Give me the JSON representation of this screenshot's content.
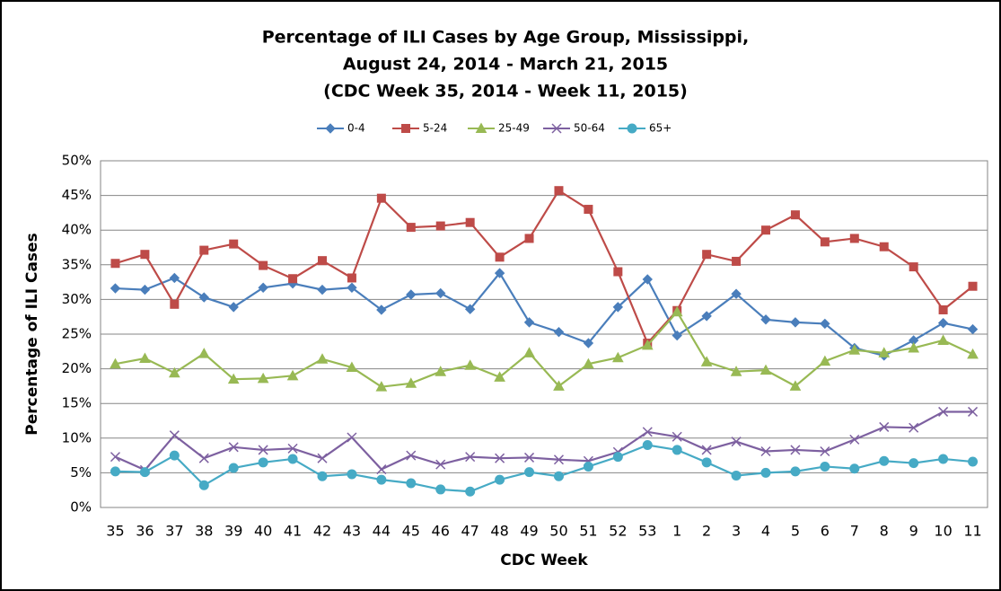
{
  "chart_data": {
    "type": "line",
    "title": [
      "Percentage of ILI Cases by Age Group, Mississippi,",
      "August 24, 2014 - March 21, 2015",
      "(CDC Week 35, 2014 - Week 11, 2015)"
    ],
    "x_label": "CDC Week",
    "y_label": "Percentage of ILI Cases",
    "categories": [
      "35",
      "36",
      "37",
      "38",
      "39",
      "40",
      "41",
      "42",
      "43",
      "44",
      "45",
      "46",
      "47",
      "48",
      "49",
      "50",
      "51",
      "52",
      "53",
      "1",
      "2",
      "3",
      "4",
      "5",
      "6",
      "7",
      "8",
      "9",
      "10",
      "11"
    ],
    "series": [
      {
        "name": "0-4",
        "color": "#4a7ebb",
        "marker": "diamond",
        "values": [
          31.6,
          31.4,
          33.1,
          30.3,
          28.9,
          31.7,
          32.3,
          31.4,
          31.7,
          28.5,
          30.7,
          30.9,
          28.6,
          33.8,
          26.7,
          25.3,
          23.7,
          28.9,
          32.9,
          24.8,
          27.6,
          30.8,
          27.1,
          26.7,
          26.5,
          23.0,
          21.9,
          24.1,
          26.6,
          25.7
        ]
      },
      {
        "name": "5-24",
        "color": "#be4b48",
        "marker": "square",
        "values": [
          35.2,
          36.5,
          29.3,
          37.1,
          38.0,
          34.9,
          33.0,
          35.6,
          33.1,
          44.6,
          40.4,
          40.6,
          41.1,
          36.1,
          38.8,
          45.7,
          43.0,
          34.0,
          23.7,
          28.4,
          36.5,
          35.5,
          40.0,
          42.2,
          38.3,
          38.8,
          37.6,
          34.7,
          28.5,
          31.9
        ]
      },
      {
        "name": "25-49",
        "color": "#98b954",
        "marker": "triangle",
        "values": [
          20.7,
          21.5,
          19.4,
          22.2,
          18.5,
          18.6,
          19.0,
          21.4,
          20.2,
          17.4,
          17.9,
          19.6,
          20.5,
          18.8,
          22.3,
          17.5,
          20.7,
          21.6,
          23.4,
          28.2,
          21.0,
          19.6,
          19.8,
          17.5,
          21.1,
          22.7,
          22.3,
          23.0,
          24.1,
          22.1
        ]
      },
      {
        "name": "50-64",
        "color": "#7d60a0",
        "marker": "x",
        "values": [
          7.3,
          5.4,
          10.4,
          7.1,
          8.7,
          8.3,
          8.5,
          7.1,
          10.1,
          5.5,
          7.5,
          6.2,
          7.3,
          7.1,
          7.2,
          6.9,
          6.7,
          8.0,
          10.9,
          10.2,
          8.3,
          9.5,
          8.1,
          8.3,
          8.1,
          9.8,
          11.6,
          11.5,
          13.8,
          13.8
        ]
      },
      {
        "name": "65+",
        "color": "#46aac5",
        "marker": "circle",
        "values": [
          5.2,
          5.1,
          7.5,
          3.2,
          5.7,
          6.5,
          7.0,
          4.5,
          4.8,
          4.0,
          3.5,
          2.6,
          2.3,
          4.0,
          5.1,
          4.5,
          5.9,
          7.3,
          9.0,
          8.3,
          6.5,
          4.6,
          5.0,
          5.2,
          5.9,
          5.6,
          6.7,
          6.4,
          7.0,
          6.6
        ]
      }
    ],
    "ylim": [
      0,
      50
    ],
    "yticks": [
      {
        "value": 0,
        "label": "0%"
      },
      {
        "value": 5,
        "label": "5%"
      },
      {
        "value": 10,
        "label": "10%"
      },
      {
        "value": 15,
        "label": "15%"
      },
      {
        "value": 20,
        "label": "20%"
      },
      {
        "value": 25,
        "label": "25%"
      },
      {
        "value": 30,
        "label": "30%"
      },
      {
        "value": 35,
        "label": "35%"
      },
      {
        "value": 40,
        "label": "40%"
      },
      {
        "value": 45,
        "label": "45%"
      },
      {
        "value": 50,
        "label": "50%"
      }
    ],
    "grid": true,
    "legend": "top"
  }
}
